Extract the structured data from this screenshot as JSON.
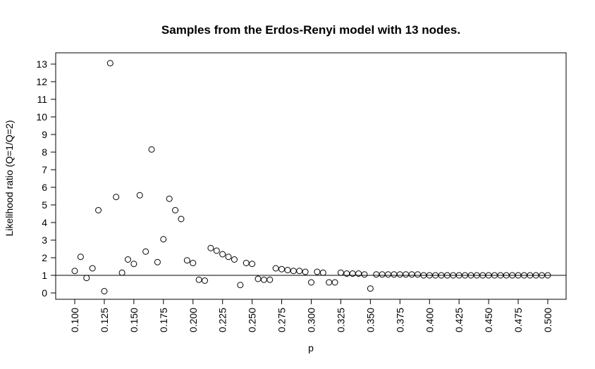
{
  "chart_data": {
    "type": "scatter",
    "title": "Samples from the Erdos-Renyi model with 13 nodes.",
    "xlabel": "p",
    "ylabel": "Likelihood ratio (Q=1/Q=2)",
    "xlim": [
      0.1,
      0.5
    ],
    "ylim": [
      0,
      13
    ],
    "x_ticks": [
      "0.100",
      "0.125",
      "0.150",
      "0.175",
      "0.200",
      "0.225",
      "0.250",
      "0.275",
      "0.300",
      "0.325",
      "0.350",
      "0.375",
      "0.400",
      "0.425",
      "0.450",
      "0.475",
      "0.500"
    ],
    "y_ticks": [
      "0",
      "1",
      "2",
      "3",
      "4",
      "5",
      "6",
      "7",
      "8",
      "9",
      "10",
      "11",
      "12",
      "13"
    ],
    "reference_line": 1,
    "grid": false,
    "legend": "none",
    "x": [
      0.1,
      0.105,
      0.11,
      0.115,
      0.12,
      0.125,
      0.13,
      0.135,
      0.14,
      0.145,
      0.15,
      0.155,
      0.16,
      0.165,
      0.17,
      0.175,
      0.18,
      0.185,
      0.19,
      0.195,
      0.2,
      0.205,
      0.21,
      0.215,
      0.22,
      0.225,
      0.23,
      0.235,
      0.24,
      0.245,
      0.25,
      0.255,
      0.26,
      0.265,
      0.27,
      0.275,
      0.28,
      0.285,
      0.29,
      0.295,
      0.3,
      0.305,
      0.31,
      0.315,
      0.32,
      0.325,
      0.33,
      0.335,
      0.34,
      0.345,
      0.35,
      0.355,
      0.36,
      0.365,
      0.37,
      0.375,
      0.38,
      0.385,
      0.39,
      0.395,
      0.4,
      0.405,
      0.41,
      0.415,
      0.42,
      0.425,
      0.43,
      0.435,
      0.44,
      0.445,
      0.45,
      0.455,
      0.46,
      0.465,
      0.47,
      0.475,
      0.48,
      0.485,
      0.49,
      0.495,
      0.5
    ],
    "y": [
      1.25,
      2.05,
      0.85,
      1.4,
      4.7,
      0.1,
      13.05,
      5.45,
      1.15,
      1.9,
      1.65,
      5.55,
      2.35,
      8.15,
      1.75,
      3.05,
      5.35,
      4.7,
      4.2,
      1.85,
      1.7,
      0.75,
      0.7,
      2.55,
      2.4,
      2.2,
      2.05,
      1.9,
      0.45,
      1.7,
      1.65,
      0.8,
      0.75,
      0.75,
      1.4,
      1.35,
      1.3,
      1.25,
      1.25,
      1.2,
      0.6,
      1.2,
      1.15,
      0.6,
      0.6,
      1.15,
      1.1,
      1.1,
      1.1,
      1.05,
      0.25,
      1.05,
      1.05,
      1.05,
      1.05,
      1.05,
      1.05,
      1.05,
      1.05,
      1.0,
      1.0,
      1.0,
      1.0,
      1.0,
      1.0,
      1.0,
      1.0,
      1.0,
      1.0,
      1.0,
      1.0,
      1.0,
      1.0,
      1.0,
      1.0,
      1.0,
      1.0,
      1.0,
      1.0,
      1.0,
      1.0
    ]
  }
}
